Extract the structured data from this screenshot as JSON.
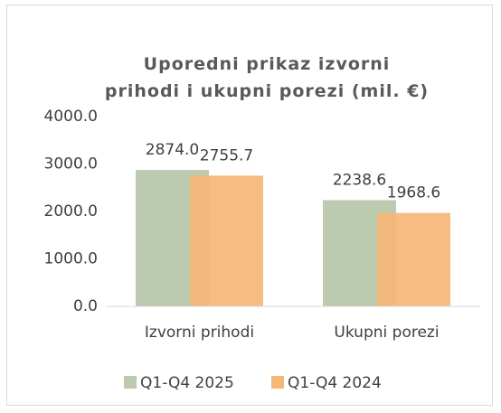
{
  "chart_data": {
    "type": "bar",
    "title": "Uporedni prikaz izvorni prihodi i ukupni porezi (mil. €)",
    "categories": [
      "Izvorni prihodi",
      "Ukupni porezi"
    ],
    "series": [
      {
        "name": "Q1-Q4 2025",
        "color": "#bccbaf",
        "values": [
          2874.0,
          2238.6
        ],
        "value_labels": [
          "2874.0",
          "2238.6"
        ]
      },
      {
        "name": "Q1-Q4 2024",
        "color": "#f5b676",
        "values": [
          2755.7,
          1968.6
        ],
        "value_labels": [
          "2755.7",
          "1968.6"
        ]
      }
    ],
    "ylim": [
      0,
      4000
    ],
    "yticks": [
      {
        "value": 0,
        "label": "0.0"
      },
      {
        "value": 1000,
        "label": "1000.0"
      },
      {
        "value": 2000,
        "label": "2000.0"
      },
      {
        "value": 3000,
        "label": "3000.0"
      },
      {
        "value": 4000,
        "label": "4000.0"
      }
    ],
    "grid": false,
    "legend": "bottom"
  }
}
